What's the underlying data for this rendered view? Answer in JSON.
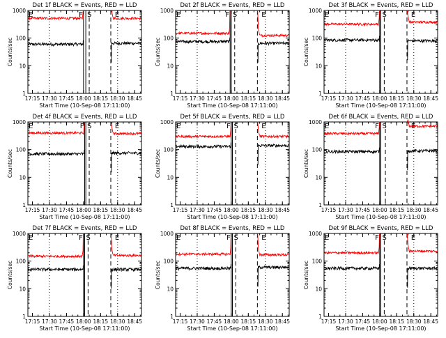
{
  "figure": {
    "start_time_label": "Start Time (10-Sep-08 17:11:00)",
    "ylabel": "Counts/sec",
    "x_ticks": [
      "17:15",
      "17:30",
      "17:45",
      "18:00",
      "18:15",
      "18:30",
      "18:45"
    ],
    "y_ticks": [
      "1",
      "10",
      "100",
      "1000"
    ],
    "series_colors": {
      "events": "#000000",
      "lld": "#ff0000"
    },
    "marker_labels": {
      "E_left": "E",
      "F": "F",
      "S": "S",
      "E_right": "E"
    }
  },
  "chart_data": [
    {
      "type": "line",
      "title": "Det 1f BLACK = Events, RED = LLD",
      "ylog": true,
      "ylim": [
        1,
        1000
      ],
      "xlim_minutes": [
        "17:11",
        "18:51"
      ],
      "series": [
        {
          "values_before": 60,
          "values_after": 65,
          "color": "#000000"
        },
        {
          "values_before": 520,
          "values_after": 520,
          "color": "#ff0000"
        }
      ],
      "markers": {
        "F_left": "18:00",
        "F_right": "18:02",
        "S": "18:05",
        "dash_right": "18:24",
        "E": "18:27"
      }
    },
    {
      "type": "line",
      "title": "Det 2f BLACK = Events, RED = LLD",
      "ylog": true,
      "ylim": [
        1,
        1000
      ],
      "xlim_minutes": [
        "17:11",
        "18:51"
      ],
      "series": [
        {
          "values_before": 75,
          "values_after": 65,
          "color": "#000000"
        },
        {
          "values_before": 150,
          "values_after": 125,
          "color": "#ff0000"
        }
      ],
      "markers": {
        "F_left": "17:59",
        "F_right": "18:00",
        "S": "18:03",
        "dash_right": "18:23",
        "E": "18:26"
      }
    },
    {
      "type": "line",
      "title": "Det 3f BLACK = Events, RED = LLD",
      "ylog": true,
      "ylim": [
        1,
        1000
      ],
      "xlim_minutes": [
        "17:11",
        "18:51"
      ],
      "series": [
        {
          "values_before": 85,
          "values_after": 80,
          "color": "#000000"
        },
        {
          "values_before": 320,
          "values_after": 380,
          "color": "#ff0000"
        }
      ],
      "markers": {
        "F_left": "18:00",
        "F_right": "18:01",
        "S": "18:04",
        "dash_right": "18:24",
        "E": "18:27"
      }
    },
    {
      "type": "line",
      "title": "Det 4f BLACK = Events, RED = LLD",
      "ylog": true,
      "ylim": [
        1,
        1000
      ],
      "xlim_minutes": [
        "17:11",
        "18:51"
      ],
      "series": [
        {
          "values_before": 70,
          "values_after": 75,
          "color": "#000000"
        },
        {
          "values_before": 400,
          "values_after": 380,
          "color": "#ff0000"
        }
      ],
      "markers": {
        "F_left": "18:01",
        "F_right": "18:02",
        "S": "18:05",
        "dash_right": "18:24",
        "E": "18:27"
      }
    },
    {
      "type": "line",
      "title": "Det 5f BLACK = Events, RED = LLD",
      "ylog": true,
      "ylim": [
        1,
        1000
      ],
      "xlim_minutes": [
        "17:11",
        "18:51"
      ],
      "series": [
        {
          "values_before": 130,
          "values_after": 140,
          "color": "#000000"
        },
        {
          "values_before": 300,
          "values_after": 300,
          "color": "#ff0000"
        }
      ],
      "markers": {
        "F_left": "18:00",
        "F_right": "18:01",
        "S": "18:04",
        "dash_right": "18:23",
        "E": "18:26"
      }
    },
    {
      "type": "line",
      "title": "Det 6f BLACK = Events, RED = LLD",
      "ylog": true,
      "ylim": [
        1,
        1000
      ],
      "xlim_minutes": [
        "17:11",
        "18:51"
      ],
      "series": [
        {
          "values_before": 85,
          "values_after": 90,
          "color": "#000000"
        },
        {
          "values_before": 380,
          "values_after": 700,
          "color": "#ff0000"
        }
      ],
      "markers": {
        "F_left": "18:00",
        "F_right": "18:01",
        "S": "18:05",
        "dash_right": "18:24",
        "E": "18:27"
      }
    },
    {
      "type": "line",
      "title": "Det 7f BLACK = Events, RED = LLD",
      "ylog": true,
      "ylim": [
        1,
        1000
      ],
      "xlim_minutes": [
        "17:11",
        "18:51"
      ],
      "series": [
        {
          "values_before": 50,
          "values_after": 50,
          "color": "#000000"
        },
        {
          "values_before": 150,
          "values_after": 160,
          "color": "#ff0000"
        }
      ],
      "markers": {
        "F_left": "18:00",
        "F_right": "18:01",
        "S": "18:04",
        "dash_right": "18:24",
        "E": "18:27"
      }
    },
    {
      "type": "line",
      "title": "Det 8f BLACK = Events, RED = LLD",
      "ylog": true,
      "ylim": [
        1,
        1000
      ],
      "xlim_minutes": [
        "17:11",
        "18:51"
      ],
      "series": [
        {
          "values_before": 55,
          "values_after": 60,
          "color": "#000000"
        },
        {
          "values_before": 180,
          "values_after": 170,
          "color": "#ff0000"
        }
      ],
      "markers": {
        "F_left": "18:00",
        "F_right": "18:01",
        "S": "18:04",
        "dash_right": "18:23",
        "E": "18:26"
      }
    },
    {
      "type": "line",
      "title": "Det 9f BLACK = Events, RED = LLD",
      "ylog": true,
      "ylim": [
        1,
        1000
      ],
      "xlim_minutes": [
        "17:11",
        "18:51"
      ],
      "series": [
        {
          "values_before": 55,
          "values_after": 55,
          "color": "#000000"
        },
        {
          "values_before": 200,
          "values_after": 230,
          "color": "#ff0000"
        }
      ],
      "markers": {
        "F_left": "18:00",
        "F_right": "18:01",
        "S": "18:04",
        "dash_right": "18:24",
        "E": "18:27"
      }
    }
  ]
}
